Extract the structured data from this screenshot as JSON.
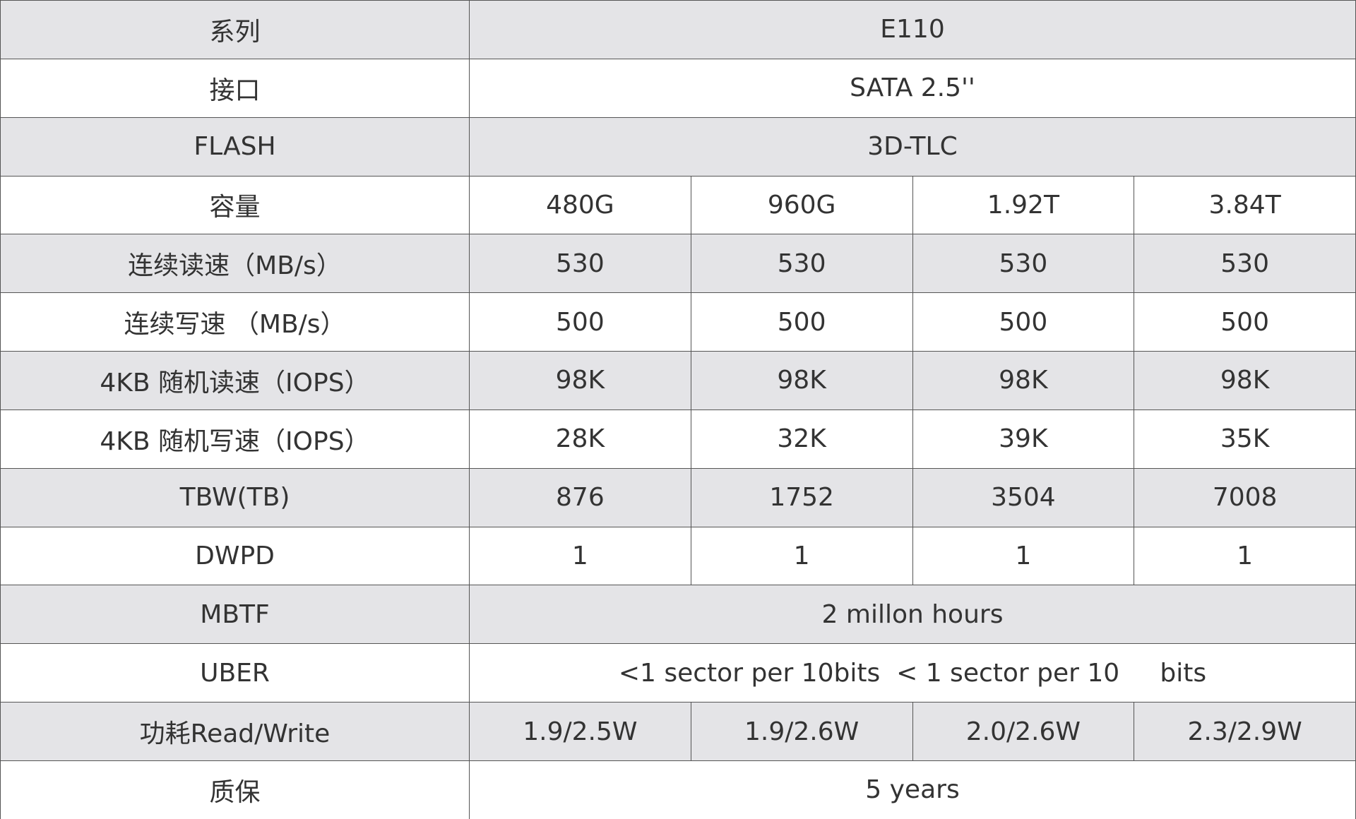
{
  "table": {
    "rows": [
      {
        "label": "系列",
        "cells": [
          "E110"
        ]
      },
      {
        "label": "接口",
        "cells": [
          "SATA 2.5''"
        ]
      },
      {
        "label": "FLASH",
        "cells": [
          "3D-TLC"
        ]
      },
      {
        "label": "容量",
        "cells": [
          "480G",
          "960G",
          "1.92T",
          "3.84T"
        ]
      },
      {
        "label": "连续读速（MB/s）",
        "cells": [
          "530",
          "530",
          "530",
          "530"
        ]
      },
      {
        "label": "连续写速 （MB/s）",
        "cells": [
          "500",
          "500",
          "500",
          "500"
        ]
      },
      {
        "label": "4KB 随机读速（IOPS）",
        "cells": [
          "98K",
          "98K",
          "98K",
          "98K"
        ]
      },
      {
        "label": "4KB 随机写速（IOPS）",
        "cells": [
          "28K",
          "32K",
          "39K",
          "35K"
        ]
      },
      {
        "label": "TBW(TB)",
        "cells": [
          "876",
          "1752",
          "3504",
          "7008"
        ]
      },
      {
        "label": "DWPD",
        "cells": [
          "1",
          "1",
          "1",
          "1"
        ]
      },
      {
        "label": "MBTF",
        "cells": [
          "2 millon hours"
        ]
      },
      {
        "label": "UBER",
        "cells": [
          "<1 sector per 10bits  < 1 sector per 10     bits"
        ]
      },
      {
        "label": "功耗Read/Write",
        "cells": [
          "1.9/2.5W",
          "1.9/2.6W",
          "2.0/2.6W",
          "2.3/2.9W"
        ]
      },
      {
        "label": "质保",
        "cells": [
          "5 years"
        ]
      }
    ]
  }
}
